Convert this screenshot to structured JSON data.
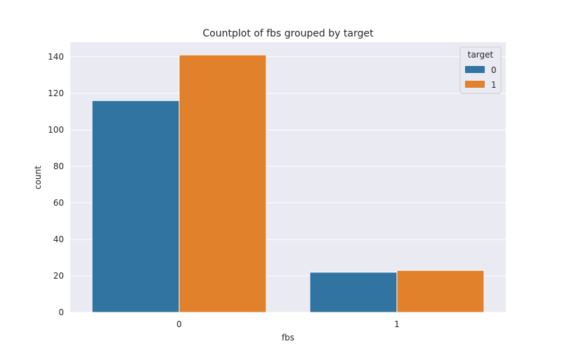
{
  "chart_data": {
    "type": "bar",
    "title": "Countplot of fbs grouped by target",
    "xlabel": "fbs",
    "ylabel": "count",
    "categories": [
      "0",
      "1"
    ],
    "series": [
      {
        "name": "0",
        "values": [
          116,
          22
        ],
        "color": "#3274a1"
      },
      {
        "name": "1",
        "values": [
          141,
          23
        ],
        "color": "#e1812c"
      }
    ],
    "ylim": [
      0,
      148
    ],
    "yticks": [
      0,
      20,
      40,
      60,
      80,
      100,
      120,
      140
    ],
    "grid": true,
    "legend": {
      "title": "target",
      "placement": "top-right"
    },
    "background": "#eaeaf2"
  }
}
